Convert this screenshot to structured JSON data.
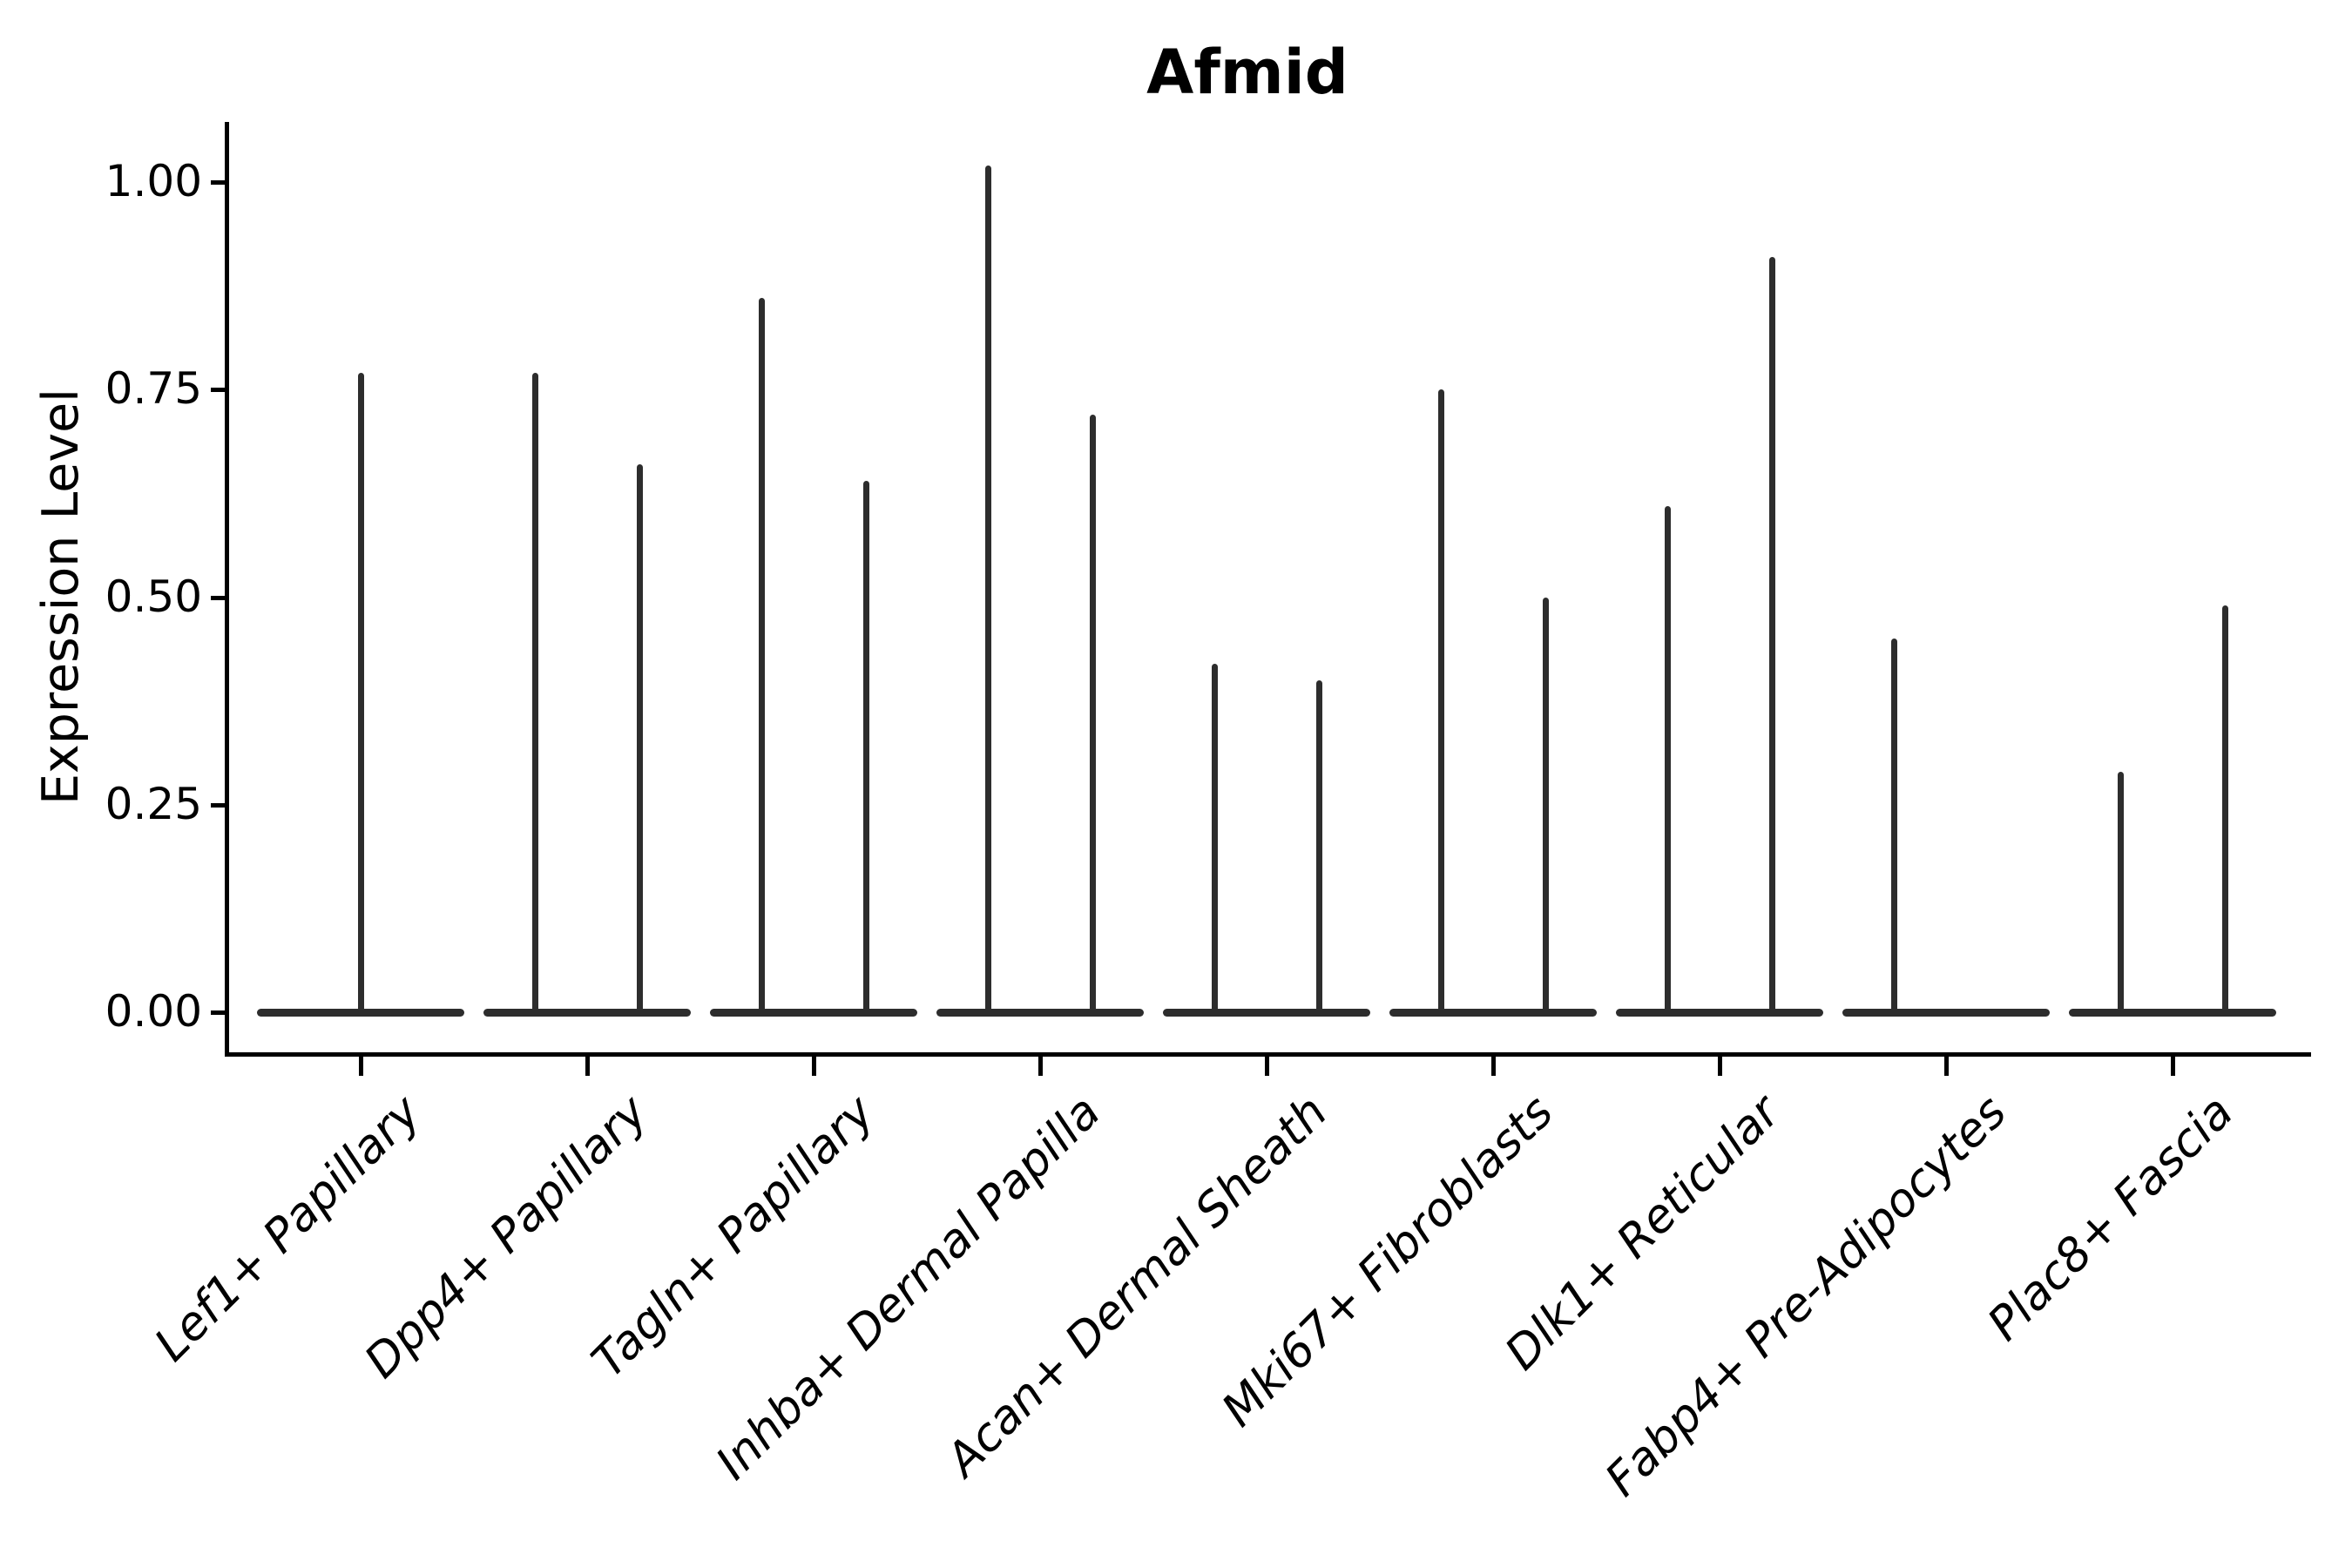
{
  "title": "Afmid",
  "colors": {
    "background": "#ffffff",
    "axis": "#000000",
    "text": "#000000",
    "violin": "#2d2d2d"
  },
  "chart_data": {
    "type": "violin",
    "title": "Afmid",
    "xlabel": "",
    "ylabel": "Expression Level",
    "ylim": [
      0,
      1.07
    ],
    "grid": false,
    "legend": "none",
    "ytick_labels": [
      "0.00",
      "0.25",
      "0.50",
      "0.75",
      "1.00"
    ],
    "ytick_values": [
      0,
      0.25,
      0.5,
      0.75,
      1.0
    ],
    "categories": [
      "Lef1+ Papillary",
      "Dpp4+ Papillary",
      "Tagln+ Papillary",
      "Inhba+ Dermal Papilla",
      "Acan+ Dermal Sheath",
      "Mki67+ Fibroblasts",
      "Dlk1+ Reticular",
      "Fabp4+ Pre-Adipocytes",
      "Plac8+ Fascia"
    ],
    "note": "Each violin collapses to a flat bar at 0 (most cells have zero expression) with a thin spike to the max expression value; categories with two dodged violins list two maxima.",
    "violins": [
      {
        "category": "Lef1+ Papillary",
        "max_values": [
          0.77
        ]
      },
      {
        "category": "Dpp4+ Papillary",
        "max_values": [
          0.77,
          0.66
        ]
      },
      {
        "category": "Tagln+ Papillary",
        "max_values": [
          0.86,
          0.64
        ]
      },
      {
        "category": "Inhba+ Dermal Papilla",
        "max_values": [
          1.02,
          0.72
        ]
      },
      {
        "category": "Acan+ Dermal Sheath",
        "max_values": [
          0.42,
          0.4
        ]
      },
      {
        "category": "Mki67+ Fibroblasts",
        "max_values": [
          0.75,
          0.5
        ]
      },
      {
        "category": "Dlk1+ Reticular",
        "max_values": [
          0.61,
          0.91
        ]
      },
      {
        "category": "Fabp4+ Pre-Adipocytes",
        "max_values": [
          0.45,
          0.0
        ]
      },
      {
        "category": "Plac8+ Fascia",
        "max_values": [
          0.29,
          0.49
        ]
      }
    ]
  }
}
